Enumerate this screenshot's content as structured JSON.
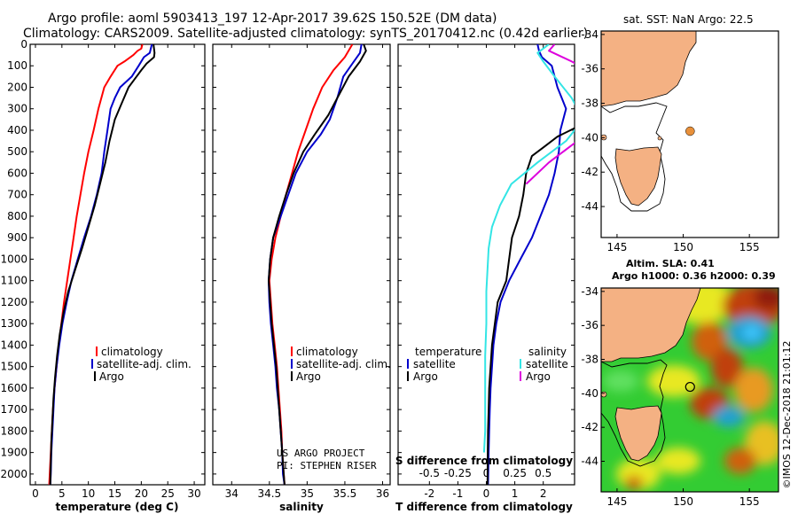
{
  "header": {
    "title": "Argo profile: aoml 5903413_197 12-Apr-2017 39.62S 150.52E (DM data)",
    "subtitle": "Climatology: CARS2009. Satellite-adjusted climatology: synTS_20170412.nc (0.42d earlier)"
  },
  "credit": {
    "line1": "US ARGO PROJECT",
    "line2": "PI: STEPHEN RISER"
  },
  "side_label": "©IMOS 12-Dec-2018 21:01:12",
  "colors": {
    "climatology": "#ff0000",
    "satellite": "#0000cc",
    "argo": "#000000",
    "sat_temp_diff": "#0000cc",
    "sat_sal_diff": "#33e5e5",
    "argo_sal_diff": "#dd00dd",
    "land": "#f4b183",
    "argo_dot": "#e8903a"
  },
  "chart_data": [
    {
      "type": "line",
      "xlabel": "temperature (deg C)",
      "ylim": [
        2050,
        0
      ],
      "xlim": [
        -1,
        32
      ],
      "xticks": [
        0,
        5,
        10,
        15,
        20,
        25,
        30
      ],
      "yticks": [
        0,
        100,
        200,
        300,
        400,
        500,
        600,
        700,
        800,
        900,
        1000,
        1100,
        1200,
        1300,
        1400,
        1500,
        1600,
        1700,
        1800,
        1900,
        2000
      ],
      "legend": [
        "climatology",
        "satellite-adj. clim.",
        "Argo"
      ],
      "series": [
        {
          "name": "climatology",
          "color": "#ff0000",
          "points": [
            [
              20.2,
              0
            ],
            [
              20.0,
              20
            ],
            [
              19.3,
              30
            ],
            [
              18.5,
              50
            ],
            [
              16.8,
              80
            ],
            [
              15.5,
              100
            ],
            [
              14.2,
              150
            ],
            [
              13.0,
              200
            ],
            [
              11.9,
              300
            ],
            [
              11.0,
              400
            ],
            [
              10.0,
              500
            ],
            [
              9.2,
              600
            ],
            [
              8.5,
              700
            ],
            [
              7.8,
              800
            ],
            [
              7.2,
              900
            ],
            [
              6.6,
              1000
            ],
            [
              6.0,
              1100
            ],
            [
              5.4,
              1200
            ],
            [
              4.9,
              1300
            ],
            [
              4.4,
              1400
            ],
            [
              4.0,
              1500
            ],
            [
              3.6,
              1600
            ],
            [
              3.3,
              1700
            ],
            [
              3.1,
              1800
            ],
            [
              2.9,
              1900
            ],
            [
              2.7,
              2000
            ],
            [
              2.6,
              2050
            ]
          ]
        },
        {
          "name": "satellite-adj. clim.",
          "color": "#0000cc",
          "points": [
            [
              22.0,
              0
            ],
            [
              21.8,
              20
            ],
            [
              21.6,
              40
            ],
            [
              20.5,
              60
            ],
            [
              19.5,
              100
            ],
            [
              18.2,
              150
            ],
            [
              16.0,
              200
            ],
            [
              15.0,
              250
            ],
            [
              14.2,
              300
            ],
            [
              13.6,
              400
            ],
            [
              13.0,
              500
            ],
            [
              12.5,
              600
            ],
            [
              11.6,
              700
            ],
            [
              10.5,
              800
            ],
            [
              9.2,
              900
            ],
            [
              8.0,
              1000
            ],
            [
              6.8,
              1100
            ],
            [
              5.9,
              1200
            ],
            [
              5.1,
              1300
            ],
            [
              4.5,
              1400
            ],
            [
              4.0,
              1500
            ],
            [
              3.6,
              1600
            ],
            [
              3.4,
              1700
            ],
            [
              3.2,
              1800
            ],
            [
              3.0,
              1900
            ],
            [
              2.9,
              2000
            ],
            [
              2.8,
              2050
            ]
          ]
        },
        {
          "name": "Argo",
          "color": "#000000",
          "points": [
            [
              22.3,
              0
            ],
            [
              22.4,
              20
            ],
            [
              22.5,
              40
            ],
            [
              22.4,
              60
            ],
            [
              21.0,
              90
            ],
            [
              20.0,
              120
            ],
            [
              18.8,
              160
            ],
            [
              17.6,
              200
            ],
            [
              16.2,
              280
            ],
            [
              15.0,
              350
            ],
            [
              14.0,
              450
            ],
            [
              13.2,
              550
            ],
            [
              12.2,
              650
            ],
            [
              11.2,
              750
            ],
            [
              10.0,
              850
            ],
            [
              8.8,
              950
            ],
            [
              7.5,
              1050
            ],
            [
              6.2,
              1150
            ],
            [
              5.3,
              1250
            ],
            [
              4.6,
              1350
            ],
            [
              4.1,
              1450
            ],
            [
              3.7,
              1550
            ],
            [
              3.4,
              1650
            ],
            [
              3.2,
              1750
            ],
            [
              3.0,
              1850
            ],
            [
              2.9,
              1950
            ],
            [
              2.8,
              2050
            ]
          ]
        }
      ]
    },
    {
      "type": "line",
      "xlabel": "salinity",
      "ylim": [
        2050,
        0
      ],
      "xlim": [
        33.75,
        36.1
      ],
      "xticks": [
        34,
        34.5,
        35,
        35.5,
        36
      ],
      "legend": [
        "climatology",
        "satellite-adj. clim.",
        "Argo"
      ],
      "series": [
        {
          "name": "climatology",
          "color": "#ff0000",
          "points": [
            [
              35.6,
              0
            ],
            [
              35.5,
              60
            ],
            [
              35.35,
              120
            ],
            [
              35.2,
              200
            ],
            [
              35.08,
              300
            ],
            [
              34.98,
              400
            ],
            [
              34.88,
              500
            ],
            [
              34.8,
              600
            ],
            [
              34.72,
              700
            ],
            [
              34.65,
              800
            ],
            [
              34.58,
              900
            ],
            [
              34.53,
              1000
            ],
            [
              34.5,
              1100
            ],
            [
              34.52,
              1200
            ],
            [
              34.54,
              1300
            ],
            [
              34.57,
              1400
            ],
            [
              34.6,
              1500
            ],
            [
              34.62,
              1600
            ],
            [
              34.64,
              1700
            ],
            [
              34.66,
              1800
            ],
            [
              34.67,
              1900
            ],
            [
              34.69,
              2000
            ],
            [
              34.7,
              2050
            ]
          ]
        },
        {
          "name": "satellite-adj. clim.",
          "color": "#0000cc",
          "points": [
            [
              35.72,
              0
            ],
            [
              35.7,
              40
            ],
            [
              35.6,
              90
            ],
            [
              35.48,
              150
            ],
            [
              35.4,
              250
            ],
            [
              35.3,
              350
            ],
            [
              35.18,
              420
            ],
            [
              35.0,
              500
            ],
            [
              34.85,
              600
            ],
            [
              34.75,
              700
            ],
            [
              34.65,
              800
            ],
            [
              34.55,
              900
            ],
            [
              34.51,
              1000
            ],
            [
              34.49,
              1100
            ],
            [
              34.5,
              1200
            ],
            [
              34.52,
              1300
            ],
            [
              34.55,
              1400
            ],
            [
              34.58,
              1500
            ],
            [
              34.6,
              1600
            ],
            [
              34.63,
              1700
            ],
            [
              34.65,
              1800
            ],
            [
              34.67,
              1900
            ],
            [
              34.68,
              2000
            ],
            [
              34.7,
              2050
            ]
          ]
        },
        {
          "name": "Argo",
          "color": "#000000",
          "points": [
            [
              35.75,
              0
            ],
            [
              35.78,
              30
            ],
            [
              35.7,
              80
            ],
            [
              35.55,
              150
            ],
            [
              35.4,
              250
            ],
            [
              35.28,
              330
            ],
            [
              35.1,
              420
            ],
            [
              34.95,
              500
            ],
            [
              34.82,
              600
            ],
            [
              34.72,
              700
            ],
            [
              34.63,
              800
            ],
            [
              34.55,
              900
            ],
            [
              34.51,
              1000
            ],
            [
              34.49,
              1100
            ],
            [
              34.51,
              1200
            ],
            [
              34.53,
              1300
            ],
            [
              34.56,
              1400
            ],
            [
              34.59,
              1500
            ],
            [
              34.61,
              1600
            ],
            [
              34.63,
              1700
            ],
            [
              34.65,
              1800
            ],
            [
              34.67,
              1900
            ],
            [
              34.69,
              2000
            ],
            [
              34.7,
              2050
            ]
          ]
        }
      ]
    },
    {
      "type": "line",
      "xlabel": "T difference from climatology",
      "xlabel2": "S difference from climatology",
      "ylim": [
        2050,
        0
      ],
      "xlim": [
        -3.1,
        3.1
      ],
      "xticks": [
        -2,
        -1,
        0,
        1,
        2
      ],
      "xticks2": [
        -0.5,
        -0.25,
        0,
        0.25,
        0.5
      ],
      "xtick2_labels": [
        "-0.5",
        "-0.25",
        "0",
        "0.25",
        "0.5"
      ],
      "legend_left_title": "temperature",
      "legend_right_title": "salinity",
      "legend_left": [
        "satellite",
        "Argo"
      ],
      "legend_right": [
        "satellite",
        "Argo"
      ],
      "series": [
        {
          "name": "satellite",
          "group": "temperature",
          "color": "#0000cc",
          "points": [
            [
              1.8,
              0
            ],
            [
              1.85,
              30
            ],
            [
              1.95,
              60
            ],
            [
              2.3,
              100
            ],
            [
              2.5,
              200
            ],
            [
              2.8,
              300
            ],
            [
              2.6,
              400
            ],
            [
              2.55,
              500
            ],
            [
              2.4,
              600
            ],
            [
              2.2,
              700
            ],
            [
              1.9,
              800
            ],
            [
              1.6,
              900
            ],
            [
              1.2,
              1000
            ],
            [
              0.8,
              1100
            ],
            [
              0.5,
              1200
            ],
            [
              0.35,
              1300
            ],
            [
              0.25,
              1400
            ],
            [
              0.2,
              1500
            ],
            [
              0.15,
              1600
            ],
            [
              0.12,
              1700
            ],
            [
              0.1,
              1800
            ],
            [
              0.08,
              1900
            ],
            [
              0.06,
              2050
            ]
          ]
        },
        {
          "name": "Argo",
          "group": "temperature",
          "color": "#000000",
          "points": [
            [
              3.1,
              390
            ],
            [
              2.5,
              430
            ],
            [
              2.0,
              480
            ],
            [
              1.6,
              520
            ],
            [
              1.4,
              600
            ],
            [
              1.3,
              700
            ],
            [
              1.15,
              800
            ],
            [
              0.9,
              900
            ],
            [
              0.8,
              1000
            ],
            [
              0.7,
              1100
            ],
            [
              0.4,
              1200
            ],
            [
              0.3,
              1300
            ],
            [
              0.2,
              1400
            ],
            [
              0.15,
              1500
            ],
            [
              0.1,
              1600
            ],
            [
              0.08,
              1700
            ],
            [
              0.06,
              1800
            ],
            [
              0.05,
              1900
            ],
            [
              0.04,
              2050
            ]
          ]
        },
        {
          "name": "satellite",
          "group": "salinity",
          "color": "#33e5e5",
          "points": [
            [
              0.55,
              0
            ],
            [
              0.45,
              40
            ],
            [
              0.5,
              80
            ],
            [
              0.6,
              150
            ],
            [
              0.75,
              250
            ],
            [
              0.85,
              350
            ],
            [
              0.7,
              450
            ],
            [
              0.45,
              550
            ],
            [
              0.22,
              650
            ],
            [
              0.12,
              750
            ],
            [
              0.05,
              850
            ],
            [
              0.02,
              950
            ],
            [
              0.01,
              1050
            ],
            [
              0.0,
              1150
            ],
            [
              0.0,
              1300
            ],
            [
              -0.01,
              1450
            ],
            [
              -0.01,
              1600
            ],
            [
              -0.01,
              1800
            ],
            [
              -0.02,
              1900
            ]
          ]
        },
        {
          "name": "Argo",
          "group": "salinity",
          "color": "#dd00dd",
          "points": [
            [
              0.6,
              0
            ],
            [
              0.55,
              30
            ],
            [
              0.75,
              80
            ],
            [
              1.0,
              150
            ],
            [
              1.05,
              250
            ],
            [
              0.95,
              350
            ],
            [
              0.8,
              450
            ],
            [
              0.55,
              550
            ],
            [
              0.35,
              650
            ]
          ]
        }
      ]
    }
  ],
  "maps": {
    "top": {
      "title": "sat. SST: NaN Argo: 22.5",
      "lon_ticks": [
        145,
        150,
        155
      ],
      "lat_ticks": [
        -34,
        -36,
        -38,
        -40,
        -42,
        -44
      ],
      "xlim": [
        143.8,
        157.2
      ],
      "ylim": [
        -45.8,
        -33.8
      ],
      "argo": {
        "lon": 150.52,
        "lat": -39.62
      }
    },
    "bottom": {
      "title1": "Altim. SLA: 0.41",
      "title2": "Argo h1000: 0.36 h2000: 0.39",
      "lon_ticks": [
        145,
        150,
        155
      ],
      "lat_ticks": [
        -34,
        -36,
        -38,
        -40,
        -42,
        -44
      ],
      "xlim": [
        143.8,
        157.2
      ],
      "ylim": [
        -45.8,
        -33.8
      ],
      "argo": {
        "lon": 150.52,
        "lat": -39.62
      }
    }
  }
}
